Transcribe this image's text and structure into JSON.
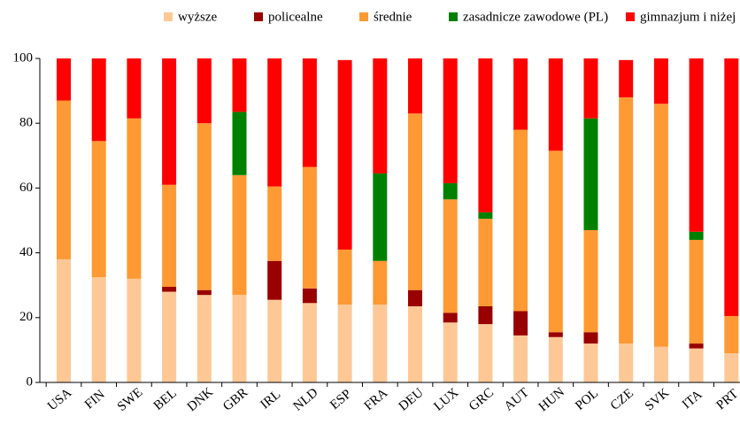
{
  "chart_data": {
    "type": "stacked_bar",
    "categories": [
      "USA",
      "FIN",
      "SWE",
      "BEL",
      "DNK",
      "GBR",
      "IRL",
      "NLD",
      "ESP",
      "FRA",
      "DEU",
      "LUX",
      "GRC",
      "AUT",
      "HUN",
      "POL",
      "CZE",
      "SVK",
      "ITA",
      "PRT"
    ],
    "series": [
      {
        "name": "wyższe",
        "color": "#fdc896",
        "values": [
          38,
          32.5,
          32,
          28,
          27,
          27,
          25.5,
          24.5,
          24,
          24,
          23.5,
          18.5,
          18,
          14.5,
          14,
          12,
          12,
          11,
          10.5,
          9
        ]
      },
      {
        "name": "policealne",
        "color": "#990000",
        "values": [
          0,
          0,
          0,
          1.5,
          1.5,
          0,
          12,
          4.5,
          0,
          0,
          5,
          3,
          5.5,
          7.5,
          1.5,
          3.5,
          0,
          0,
          1.5,
          0
        ]
      },
      {
        "name": "średnie",
        "color": "#ff9933",
        "values": [
          49,
          42,
          49.5,
          31.5,
          51.5,
          37,
          23,
          37.5,
          17,
          13.5,
          54.5,
          35,
          27,
          56,
          56,
          31.5,
          76,
          75,
          32,
          11.5
        ]
      },
      {
        "name": "zasadnicze zawodowe (PL)",
        "color": "#008000",
        "values": [
          0,
          0,
          0,
          0,
          0,
          19.5,
          0,
          0,
          0,
          27,
          0,
          5,
          2,
          0,
          0,
          34.5,
          0,
          0,
          2.5,
          0
        ]
      },
      {
        "name": "gimnazjum i niżej",
        "color": "#ff0000",
        "values": [
          13,
          25.5,
          18.5,
          39,
          20,
          16.5,
          39.5,
          33.5,
          58.5,
          35.5,
          17,
          38.5,
          47.5,
          22,
          28.5,
          18.5,
          11.5,
          14,
          53.5,
          79.5
        ]
      }
    ],
    "ylim": [
      0,
      100
    ],
    "yticks": [
      0,
      20,
      40,
      60,
      80,
      100
    ]
  }
}
